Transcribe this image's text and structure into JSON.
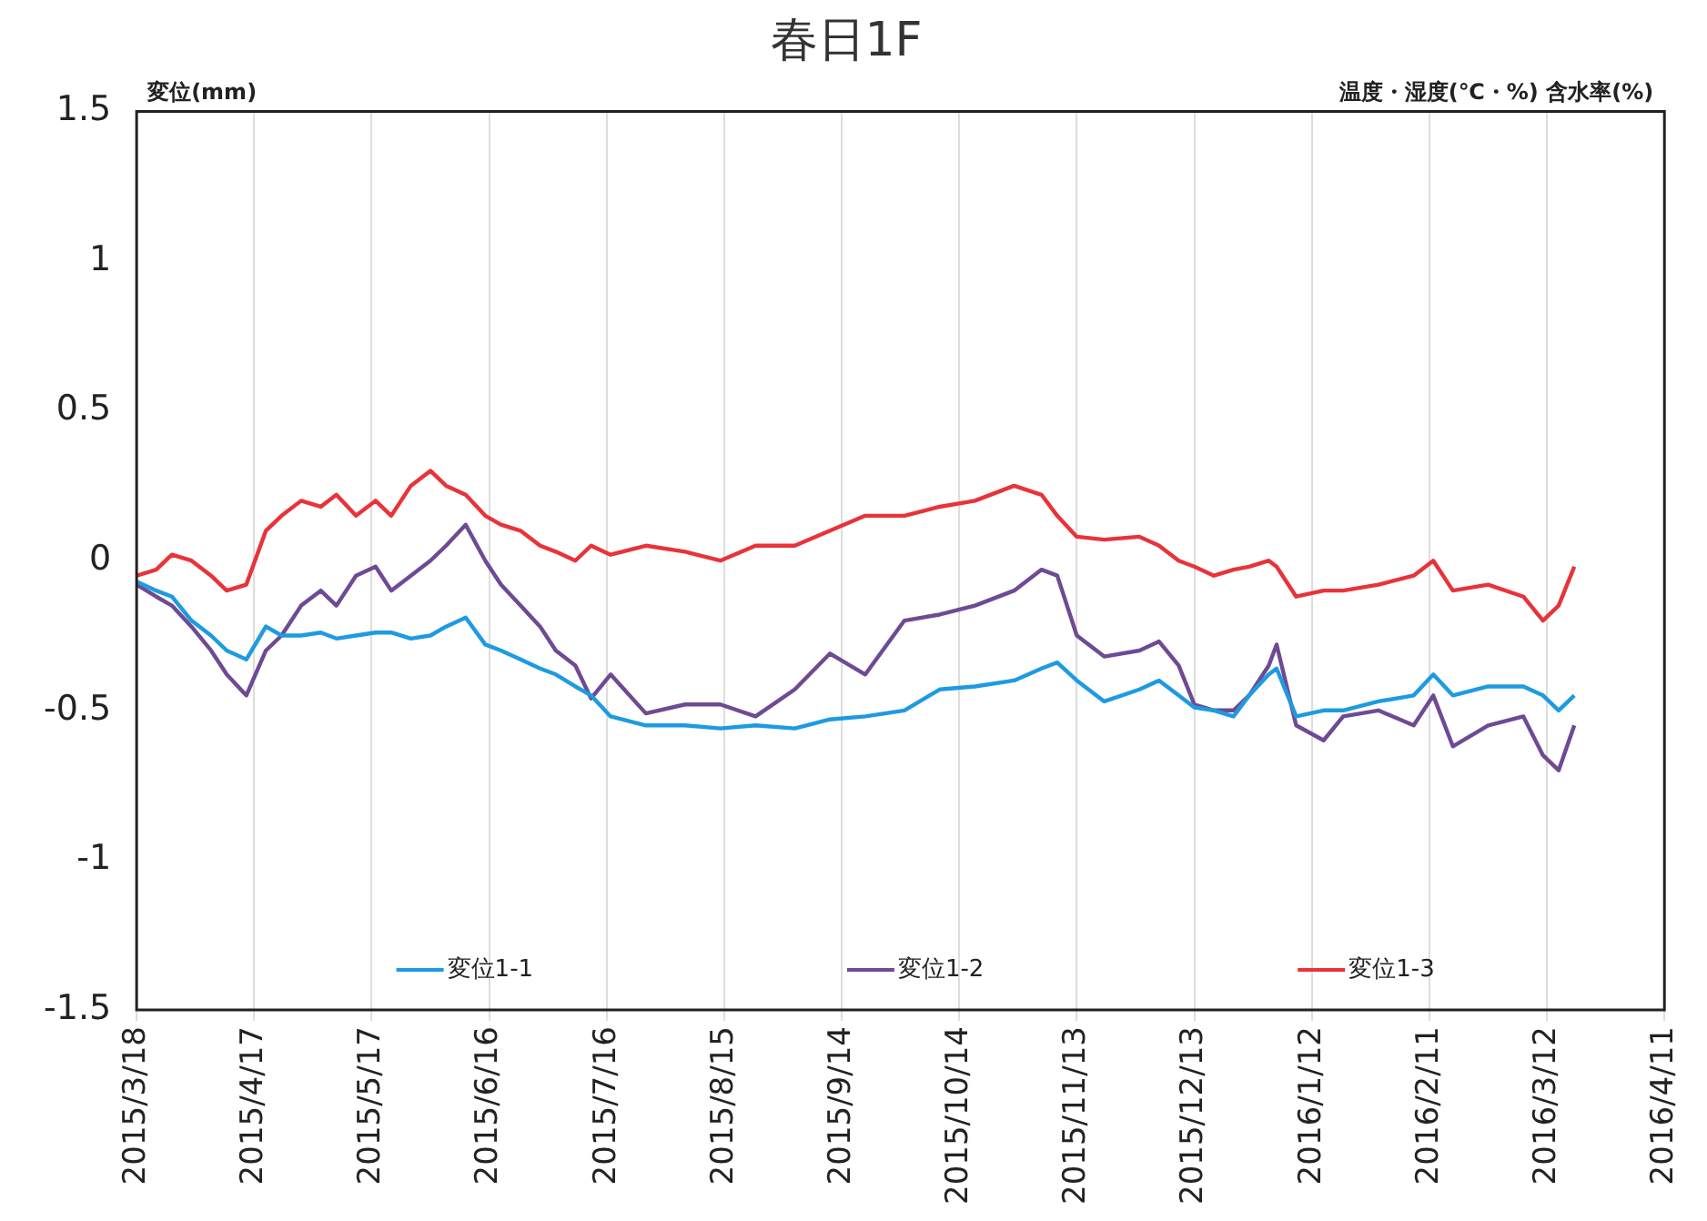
{
  "chart_data": {
    "type": "line",
    "title": "春日1F",
    "ylabel": "変位(mm)",
    "y2label": "温度・湿度(℃・%) 含水率(%)",
    "x": [
      "2015-03-18",
      "2015-03-23",
      "2015-03-27",
      "2015-04-01",
      "2015-04-06",
      "2015-04-10",
      "2015-04-15",
      "2015-04-20",
      "2015-04-24",
      "2015-04-29",
      "2015-05-04",
      "2015-05-08",
      "2015-05-13",
      "2015-05-18",
      "2015-05-22",
      "2015-05-27",
      "2015-06-01",
      "2015-06-05",
      "2015-06-10",
      "2015-06-15",
      "2015-06-19",
      "2015-06-24",
      "2015-06-29",
      "2015-07-03",
      "2015-07-08",
      "2015-07-12",
      "2015-07-17",
      "2015-07-26",
      "2015-08-05",
      "2015-08-14",
      "2015-08-23",
      "2015-09-02",
      "2015-09-11",
      "2015-09-20",
      "2015-09-30",
      "2015-10-09",
      "2015-10-18",
      "2015-10-28",
      "2015-11-04",
      "2015-11-08",
      "2015-11-13",
      "2015-11-20",
      "2015-11-29",
      "2015-12-04",
      "2015-12-09",
      "2015-12-13",
      "2015-12-18",
      "2015-12-23",
      "2015-12-27",
      "2016-01-01",
      "2016-01-03",
      "2016-01-08",
      "2016-01-15",
      "2016-01-20",
      "2016-01-29",
      "2016-02-07",
      "2016-02-12",
      "2016-02-17",
      "2016-02-26",
      "2016-03-06",
      "2016-03-11",
      "2016-03-15",
      "2016-03-19"
    ],
    "series": [
      {
        "name": "変位1-1",
        "color": "#1e9be0",
        "values": [
          -0.07,
          -0.1,
          -0.12,
          -0.2,
          -0.25,
          -0.3,
          -0.33,
          -0.22,
          -0.25,
          -0.25,
          -0.24,
          -0.26,
          -0.25,
          -0.24,
          -0.24,
          -0.26,
          -0.25,
          -0.22,
          -0.19,
          -0.28,
          -0.3,
          -0.33,
          -0.36,
          -0.38,
          -0.42,
          -0.45,
          -0.52,
          -0.55,
          -0.55,
          -0.56,
          -0.55,
          -0.56,
          -0.53,
          -0.52,
          -0.5,
          -0.43,
          -0.42,
          -0.4,
          -0.36,
          -0.34,
          -0.4,
          -0.47,
          -0.43,
          -0.4,
          -0.45,
          -0.49,
          -0.5,
          -0.52,
          -0.45,
          -0.38,
          -0.36,
          -0.52,
          -0.5,
          -0.5,
          -0.47,
          -0.45,
          -0.38,
          -0.45,
          -0.42,
          -0.42,
          -0.45,
          -0.5,
          -0.45
        ]
      },
      {
        "name": "変位1-2",
        "color": "#6f4a94",
        "values": [
          -0.08,
          -0.12,
          -0.15,
          -0.22,
          -0.3,
          -0.38,
          -0.45,
          -0.3,
          -0.25,
          -0.15,
          -0.1,
          -0.15,
          -0.05,
          -0.02,
          -0.1,
          -0.05,
          0.0,
          0.05,
          0.12,
          0.0,
          -0.08,
          -0.15,
          -0.22,
          -0.3,
          -0.35,
          -0.46,
          -0.38,
          -0.51,
          -0.48,
          -0.48,
          -0.52,
          -0.43,
          -0.31,
          -0.38,
          -0.2,
          -0.18,
          -0.15,
          -0.1,
          -0.03,
          -0.05,
          -0.25,
          -0.32,
          -0.3,
          -0.27,
          -0.35,
          -0.48,
          -0.5,
          -0.5,
          -0.45,
          -0.35,
          -0.28,
          -0.55,
          -0.6,
          -0.52,
          -0.5,
          -0.55,
          -0.45,
          -0.62,
          -0.55,
          -0.52,
          -0.65,
          -0.7,
          -0.55
        ]
      },
      {
        "name": "変位1-3",
        "color": "#e8333a",
        "values": [
          -0.05,
          -0.03,
          0.02,
          0.0,
          -0.05,
          -0.1,
          -0.08,
          0.1,
          0.15,
          0.2,
          0.18,
          0.22,
          0.15,
          0.2,
          0.15,
          0.25,
          0.3,
          0.25,
          0.22,
          0.15,
          0.12,
          0.1,
          0.05,
          0.03,
          0.0,
          0.05,
          0.02,
          0.05,
          0.03,
          0.0,
          0.05,
          0.05,
          0.1,
          0.15,
          0.15,
          0.18,
          0.2,
          0.25,
          0.22,
          0.15,
          0.08,
          0.07,
          0.08,
          0.05,
          0.0,
          -0.02,
          -0.05,
          -0.03,
          -0.02,
          0.0,
          -0.02,
          -0.12,
          -0.1,
          -0.1,
          -0.08,
          -0.05,
          0.0,
          -0.1,
          -0.08,
          -0.12,
          -0.2,
          -0.15,
          -0.02
        ]
      }
    ],
    "xlim": [
      "2015-03-18",
      "2016-04-11"
    ],
    "xticks": [
      {
        "value": "2015-03-18",
        "label": "2015/3/18"
      },
      {
        "value": "2015-04-17",
        "label": "2015/4/17"
      },
      {
        "value": "2015-05-17",
        "label": "2015/5/17"
      },
      {
        "value": "2015-06-16",
        "label": "2015/6/16"
      },
      {
        "value": "2015-07-16",
        "label": "2015/7/16"
      },
      {
        "value": "2015-08-15",
        "label": "2015/8/15"
      },
      {
        "value": "2015-09-14",
        "label": "2015/9/14"
      },
      {
        "value": "2015-10-14",
        "label": "2015/10/14"
      },
      {
        "value": "2015-11-13",
        "label": "2015/11/13"
      },
      {
        "value": "2015-12-13",
        "label": "2015/12/13"
      },
      {
        "value": "2016-01-12",
        "label": "2016/1/12"
      },
      {
        "value": "2016-02-11",
        "label": "2016/2/11"
      },
      {
        "value": "2016-03-12",
        "label": "2016/3/12"
      },
      {
        "value": "2016-04-11",
        "label": "2016/4/11"
      }
    ],
    "ylim": [
      -1.5,
      1.5
    ],
    "yticks": [
      -1.5,
      -1,
      -0.5,
      0,
      0.5,
      1,
      1.5
    ],
    "grid": "x",
    "legend": "bottom",
    "marker": "none",
    "line_style": "solid"
  }
}
